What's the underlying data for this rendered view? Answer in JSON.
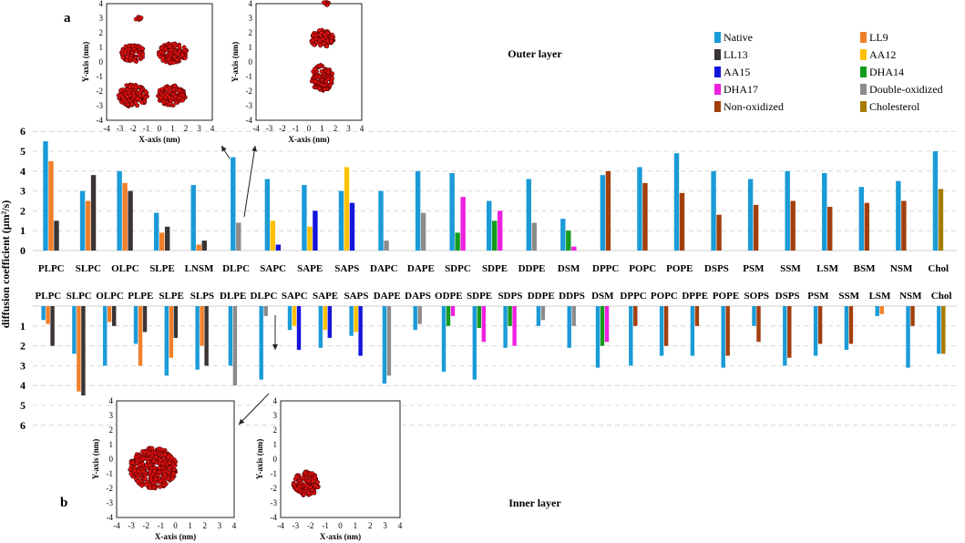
{
  "chart_data": {
    "type": "bar",
    "ylabel": "diffusion coefficient (µm²/s)",
    "y_ticks": [
      "1",
      "2",
      "3",
      "4",
      "5",
      "6"
    ],
    "y_zero_label": "0",
    "ylim": [
      0,
      6
    ],
    "series_names": [
      "Native",
      "LL9",
      "LL13",
      "AA12",
      "AA15",
      "DHA14",
      "DHA17",
      "Double-oxidized",
      "Non-oxidized",
      "Cholesterol"
    ],
    "colors": {
      "Native": "#1a9bd7",
      "LL9": "#f07f2a",
      "LL13": "#3a3432",
      "AA12": "#ffc000",
      "AA15": "#1414dc",
      "DHA14": "#149b20",
      "DHA17": "#ee20e0",
      "Double-oxidized": "#8c8c8c",
      "Non-oxidized": "#a33f0c",
      "Cholesterol": "#a67c00"
    },
    "legend": [
      {
        "name": "Native",
        "color": "#1a9bd7"
      },
      {
        "name": "LL9",
        "color": "#f07f2a"
      },
      {
        "name": "LL13",
        "color": "#3a3432"
      },
      {
        "name": "AA12",
        "color": "#ffc000"
      },
      {
        "name": "AA15",
        "color": "#1414dc"
      },
      {
        "name": "DHA14",
        "color": "#149b20"
      },
      {
        "name": "DHA17",
        "color": "#ee20e0"
      },
      {
        "name": "Double-oxidized",
        "color": "#8c8c8c"
      },
      {
        "name": "Non-oxidized",
        "color": "#a33f0c"
      },
      {
        "name": "Cholesterol",
        "color": "#a67c00"
      }
    ],
    "outer": {
      "title": "Outer layer",
      "panel_label": "a",
      "categories": [
        "PLPC",
        "SLPC",
        "OLPC",
        "SLPE",
        "LNSM",
        "DLPC",
        "SAPC",
        "SAPE",
        "SAPS",
        "DAPC",
        "DAPE",
        "SDPC",
        "SDPE",
        "DDPE",
        "DSM",
        "DPPC",
        "POPC",
        "POPE",
        "DSPS",
        "PSM",
        "SSM",
        "LSM",
        "BSM",
        "NSM",
        "Chol"
      ],
      "groups": [
        [
          {
            "s": "Native",
            "v": 5.5
          },
          {
            "s": "LL9",
            "v": 4.5
          },
          {
            "s": "LL13",
            "v": 1.5
          }
        ],
        [
          {
            "s": "Native",
            "v": 3.0
          },
          {
            "s": "LL9",
            "v": 2.5
          },
          {
            "s": "LL13",
            "v": 3.8
          }
        ],
        [
          {
            "s": "Native",
            "v": 4.0
          },
          {
            "s": "LL9",
            "v": 3.4
          },
          {
            "s": "LL13",
            "v": 3.0
          }
        ],
        [
          {
            "s": "Native",
            "v": 1.9
          },
          {
            "s": "LL9",
            "v": 0.9
          },
          {
            "s": "LL13",
            "v": 1.2
          }
        ],
        [
          {
            "s": "Native",
            "v": 3.3
          },
          {
            "s": "LL9",
            "v": 0.3
          },
          {
            "s": "LL13",
            "v": 0.5
          }
        ],
        [
          {
            "s": "Native",
            "v": 4.7
          },
          {
            "s": "Double-oxidized",
            "v": 1.4
          }
        ],
        [
          {
            "s": "Native",
            "v": 3.6
          },
          {
            "s": "AA12",
            "v": 1.5
          },
          {
            "s": "AA15",
            "v": 0.3
          }
        ],
        [
          {
            "s": "Native",
            "v": 3.3
          },
          {
            "s": "AA12",
            "v": 1.2
          },
          {
            "s": "AA15",
            "v": 2.0
          }
        ],
        [
          {
            "s": "Native",
            "v": 3.0
          },
          {
            "s": "AA12",
            "v": 4.2
          },
          {
            "s": "AA15",
            "v": 2.4
          }
        ],
        [
          {
            "s": "Native",
            "v": 3.0
          },
          {
            "s": "Double-oxidized",
            "v": 0.5
          }
        ],
        [
          {
            "s": "Native",
            "v": 4.0
          },
          {
            "s": "Double-oxidized",
            "v": 1.9
          }
        ],
        [
          {
            "s": "Native",
            "v": 3.9
          },
          {
            "s": "DHA14",
            "v": 0.9
          },
          {
            "s": "DHA17",
            "v": 2.7
          }
        ],
        [
          {
            "s": "Native",
            "v": 2.5
          },
          {
            "s": "DHA14",
            "v": 1.5
          },
          {
            "s": "DHA17",
            "v": 2.0
          }
        ],
        [
          {
            "s": "Native",
            "v": 3.6
          },
          {
            "s": "Double-oxidized",
            "v": 1.4
          }
        ],
        [
          {
            "s": "Native",
            "v": 1.6
          },
          {
            "s": "DHA14",
            "v": 1.0
          },
          {
            "s": "DHA17",
            "v": 0.2
          }
        ],
        [
          {
            "s": "Native",
            "v": 3.8
          },
          {
            "s": "Non-oxidized",
            "v": 4.0
          }
        ],
        [
          {
            "s": "Native",
            "v": 4.2
          },
          {
            "s": "Non-oxidized",
            "v": 3.4
          }
        ],
        [
          {
            "s": "Native",
            "v": 4.9
          },
          {
            "s": "Non-oxidized",
            "v": 2.9
          }
        ],
        [
          {
            "s": "Native",
            "v": 4.0
          },
          {
            "s": "Non-oxidized",
            "v": 1.8
          }
        ],
        [
          {
            "s": "Native",
            "v": 3.6
          },
          {
            "s": "Non-oxidized",
            "v": 2.3
          }
        ],
        [
          {
            "s": "Native",
            "v": 4.0
          },
          {
            "s": "Non-oxidized",
            "v": 2.5
          }
        ],
        [
          {
            "s": "Native",
            "v": 3.9
          },
          {
            "s": "Non-oxidized",
            "v": 2.2
          }
        ],
        [
          {
            "s": "Native",
            "v": 3.2
          },
          {
            "s": "Non-oxidized",
            "v": 2.4
          }
        ],
        [
          {
            "s": "Native",
            "v": 3.5
          },
          {
            "s": "Non-oxidized",
            "v": 2.5
          }
        ],
        [
          {
            "s": "Native",
            "v": 5.0
          },
          {
            "s": "Cholesterol",
            "v": 3.1
          }
        ]
      ]
    },
    "inner": {
      "title": "Inner layer",
      "panel_label": "b",
      "categories": [
        "PLPC",
        "SLPC",
        "OLPC",
        "PLPE",
        "SLPE",
        "SLPS",
        "DLPE",
        "DLPC",
        "SAPC",
        "SAPE",
        "SAPS",
        "DAPE",
        "DAPS",
        "ODPE",
        "SDPE",
        "SDPS",
        "DDPE",
        "DDPS",
        "DSM",
        "DPPC",
        "POPC",
        "DPPE",
        "POPE",
        "SOPS",
        "DSPS",
        "PSM",
        "SSM",
        "LSM",
        "NSM",
        "Chol"
      ],
      "groups": [
        [
          {
            "s": "Native",
            "v": 0.7
          },
          {
            "s": "LL9",
            "v": 0.9
          },
          {
            "s": "LL13",
            "v": 2.0
          }
        ],
        [
          {
            "s": "Native",
            "v": 2.4
          },
          {
            "s": "LL9",
            "v": 4.3
          },
          {
            "s": "LL13",
            "v": 4.5
          }
        ],
        [
          {
            "s": "Native",
            "v": 3.0
          },
          {
            "s": "LL9",
            "v": 0.8
          },
          {
            "s": "LL13",
            "v": 1.0
          }
        ],
        [
          {
            "s": "Native",
            "v": 1.9
          },
          {
            "s": "LL9",
            "v": 3.0
          },
          {
            "s": "LL13",
            "v": 1.3
          }
        ],
        [
          {
            "s": "Native",
            "v": 3.5
          },
          {
            "s": "LL9",
            "v": 2.6
          },
          {
            "s": "LL13",
            "v": 1.6
          }
        ],
        [
          {
            "s": "Native",
            "v": 3.2
          },
          {
            "s": "LL9",
            "v": 2.0
          },
          {
            "s": "LL13",
            "v": 3.0
          }
        ],
        [
          {
            "s": "Native",
            "v": 3.0
          },
          {
            "s": "Double-oxidized",
            "v": 4.0
          }
        ],
        [
          {
            "s": "Native",
            "v": 3.7
          },
          {
            "s": "Double-oxidized",
            "v": 0.5
          }
        ],
        [
          {
            "s": "Native",
            "v": 1.2
          },
          {
            "s": "AA12",
            "v": 1.0
          },
          {
            "s": "AA15",
            "v": 2.2
          }
        ],
        [
          {
            "s": "Native",
            "v": 2.1
          },
          {
            "s": "AA12",
            "v": 1.2
          },
          {
            "s": "AA15",
            "v": 1.6
          }
        ],
        [
          {
            "s": "Native",
            "v": 1.5
          },
          {
            "s": "AA12",
            "v": 1.3
          },
          {
            "s": "AA15",
            "v": 2.5
          }
        ],
        [
          {
            "s": "Native",
            "v": 3.9
          },
          {
            "s": "Double-oxidized",
            "v": 3.5
          }
        ],
        [
          {
            "s": "Native",
            "v": 1.2
          },
          {
            "s": "Double-oxidized",
            "v": 0.9
          }
        ],
        [
          {
            "s": "Native",
            "v": 3.3
          },
          {
            "s": "DHA14",
            "v": 1.0
          },
          {
            "s": "DHA17",
            "v": 0.5
          }
        ],
        [
          {
            "s": "Native",
            "v": 3.7
          },
          {
            "s": "DHA14",
            "v": 1.1
          },
          {
            "s": "DHA17",
            "v": 1.8
          }
        ],
        [
          {
            "s": "Native",
            "v": 2.1
          },
          {
            "s": "DHA14",
            "v": 1.0
          },
          {
            "s": "DHA17",
            "v": 2.0
          }
        ],
        [
          {
            "s": "Native",
            "v": 1.0
          },
          {
            "s": "Double-oxidized",
            "v": 0.7
          }
        ],
        [
          {
            "s": "Native",
            "v": 2.1
          },
          {
            "s": "Double-oxidized",
            "v": 1.0
          }
        ],
        [
          {
            "s": "Native",
            "v": 3.1
          },
          {
            "s": "DHA14",
            "v": 2.0
          },
          {
            "s": "DHA17",
            "v": 1.8
          }
        ],
        [
          {
            "s": "Native",
            "v": 3.0
          },
          {
            "s": "Non-oxidized",
            "v": 1.0
          }
        ],
        [
          {
            "s": "Native",
            "v": 2.5
          },
          {
            "s": "Non-oxidized",
            "v": 2.0
          }
        ],
        [
          {
            "s": "Native",
            "v": 2.5
          },
          {
            "s": "Non-oxidized",
            "v": 1.0
          }
        ],
        [
          {
            "s": "Native",
            "v": 3.1
          },
          {
            "s": "Non-oxidized",
            "v": 2.5
          }
        ],
        [
          {
            "s": "Native",
            "v": 1.0
          },
          {
            "s": "Non-oxidized",
            "v": 1.8
          }
        ],
        [
          {
            "s": "Native",
            "v": 3.0
          },
          {
            "s": "Non-oxidized",
            "v": 2.6
          }
        ],
        [
          {
            "s": "Native",
            "v": 2.5
          },
          {
            "s": "Non-oxidized",
            "v": 1.9
          }
        ],
        [
          {
            "s": "Native",
            "v": 2.2
          },
          {
            "s": "Non-oxidized",
            "v": 1.9
          }
        ],
        [
          {
            "s": "Native",
            "v": 0.5
          },
          {
            "s": "LL9",
            "v": 0.4
          }
        ],
        [
          {
            "s": "Native",
            "v": 3.1
          },
          {
            "s": "Non-oxidized",
            "v": 1.0
          }
        ],
        [
          {
            "s": "Native",
            "v": 2.4
          },
          {
            "s": "Cholesterol",
            "v": 2.4
          }
        ]
      ]
    },
    "insets": {
      "x_label": "X-axis (nm)",
      "y_label": "Y-axis (nm)",
      "x_ticks": [
        "-4",
        "-3",
        "-2",
        "-1",
        "0",
        "1",
        "2",
        "3",
        "4"
      ],
      "y_ticks": [
        "4",
        "3",
        "2",
        "1",
        "0",
        "-1",
        "-2",
        "-3",
        "-4"
      ],
      "panels": [
        {
          "id": "outer-left",
          "clusters": [
            {
              "cx": -2.0,
              "cy": 0.6,
              "rx": 0.9,
              "ry": 0.6
            },
            {
              "cx": 1.0,
              "cy": 0.6,
              "rx": 1.1,
              "ry": 0.7
            },
            {
              "cx": -2.0,
              "cy": -2.3,
              "rx": 1.1,
              "ry": 0.8
            },
            {
              "cx": 0.9,
              "cy": -2.3,
              "rx": 1.1,
              "ry": 0.7
            },
            {
              "cx": -1.6,
              "cy": 3.0,
              "rx": 0.25,
              "ry": 0.15
            }
          ]
        },
        {
          "id": "outer-right",
          "clusters": [
            {
              "cx": 1.0,
              "cy": 1.6,
              "rx": 0.9,
              "ry": 0.6
            },
            {
              "cx": 1.0,
              "cy": -1.1,
              "rx": 0.85,
              "ry": 0.9
            },
            {
              "cx": 1.4,
              "cy": 4.0,
              "rx": 0.4,
              "ry": 0.12
            }
          ]
        },
        {
          "id": "inner-left",
          "clusters": [
            {
              "cx": -1.5,
              "cy": -0.6,
              "rx": 1.6,
              "ry": 1.4
            }
          ]
        },
        {
          "id": "inner-right",
          "clusters": [
            {
              "cx": -2.3,
              "cy": -1.7,
              "rx": 0.85,
              "ry": 0.85
            }
          ]
        }
      ]
    }
  }
}
